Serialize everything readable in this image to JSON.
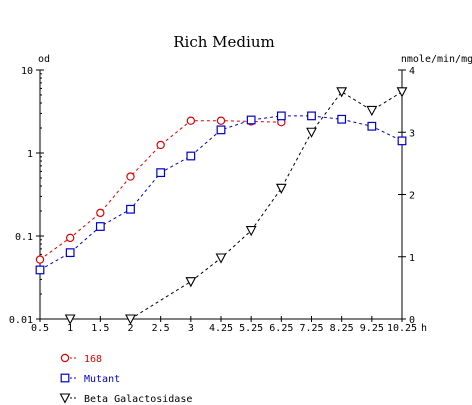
{
  "chart_data": {
    "type": "line",
    "title": "Rich Medium",
    "x_unit": "h",
    "y_left_label": "od",
    "y_right_label": "nmole/min/mg",
    "y_left_scale": "log",
    "y_left_ylim": [
      0.01,
      10
    ],
    "y_left_ticks": [
      "10",
      "1",
      "0.1",
      "0.01"
    ],
    "y_left_tick_values": [
      10,
      1,
      0.1,
      0.01
    ],
    "y_right_ylim": [
      0,
      4
    ],
    "y_right_ticks": [
      "4",
      "3",
      "2",
      "1",
      "0"
    ],
    "y_right_tick_values": [
      4,
      3,
      2,
      1,
      0
    ],
    "x_ticks": [
      "0.5",
      "1",
      "1.5",
      "2",
      "2.5",
      "3",
      "4.25",
      "5.25",
      "6.25",
      "7.25",
      "8.25",
      "9.25",
      "10.25"
    ],
    "x_tick_values": [
      0.5,
      1,
      1.5,
      2,
      2.5,
      3,
      4.25,
      5.25,
      6.25,
      7.25,
      8.25,
      9.25,
      10.25
    ],
    "grid": false,
    "legend_position": "bottom-left",
    "series": [
      {
        "name": "168",
        "axis": "left",
        "color": "#dd0000",
        "marker": "circle",
        "x": [
          0.5,
          1,
          1.5,
          2,
          2.5,
          3,
          4.25,
          5.25,
          6.25
        ],
        "y": [
          0.052,
          0.095,
          0.19,
          0.52,
          1.25,
          2.45,
          2.45,
          2.4,
          2.35
        ]
      },
      {
        "name": "Mutant",
        "axis": "left",
        "color": "#0000cc",
        "marker": "square",
        "x": [
          0.5,
          1,
          1.5,
          2,
          2.5,
          3,
          4.25,
          5.25,
          6.25,
          7.25,
          8.25,
          9.25,
          10.25
        ],
        "y": [
          0.039,
          0.063,
          0.13,
          0.21,
          0.58,
          0.92,
          1.9,
          2.5,
          2.8,
          2.8,
          2.55,
          2.1,
          1.4
        ]
      },
      {
        "name": "Beta Galactosidase",
        "axis": "right",
        "color": "#000000",
        "marker": "triangle-down",
        "x": [
          1,
          2,
          3,
          4.25,
          5.25,
          6.25,
          7.25,
          8.25,
          9.25,
          10.25
        ],
        "y": [
          0,
          0,
          0.6,
          0.98,
          1.42,
          2.1,
          3.0,
          3.65,
          3.35,
          3.65
        ]
      }
    ]
  }
}
